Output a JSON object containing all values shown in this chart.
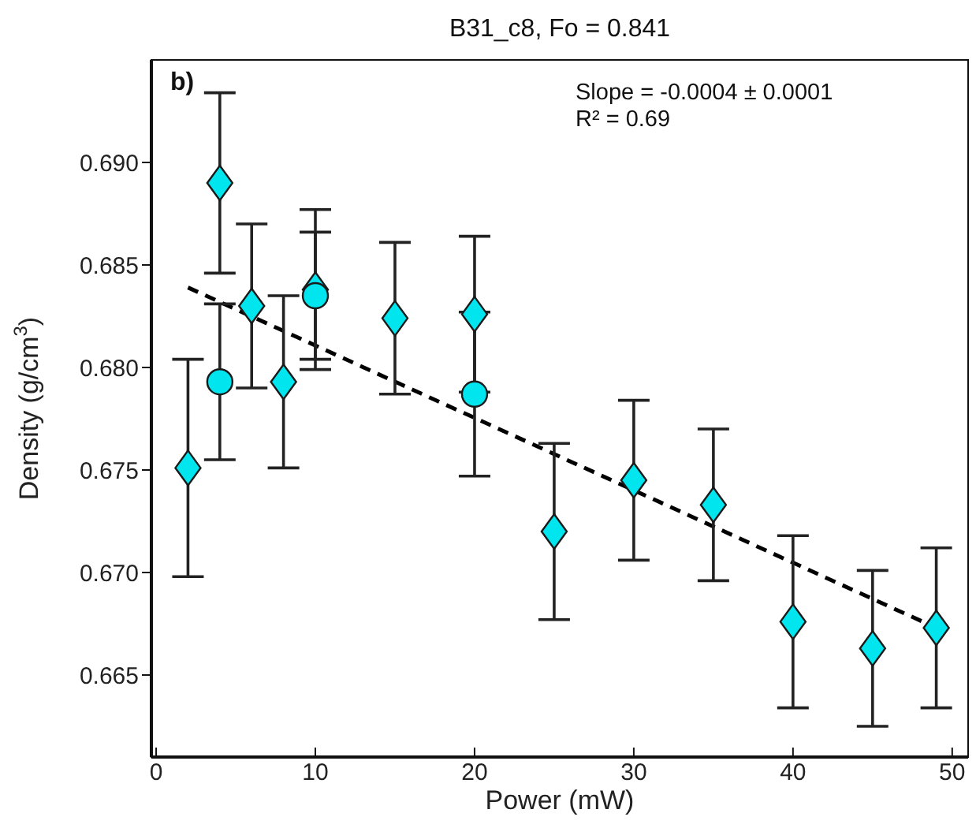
{
  "chart_data": {
    "type": "scatter",
    "title": "B31_c8, Fo = 0.841",
    "xlabel": "Power (mW)",
    "ylabel": "Density (g/cm$^{3}$)",
    "annotations": [
      "b)",
      "Slope = -0.0004 ± 0.0001",
      "R² = 0.69"
    ],
    "xlim": [
      -0.3,
      51
    ],
    "xticks": [
      0,
      10,
      20,
      30,
      40,
      50
    ],
    "ylim": [
      0.661,
      0.695
    ],
    "yticks": [
      0.665,
      {
        "value": 0.67,
        "label": "0.670"
      },
      0.675,
      {
        "value": 0.68,
        "label": "0.680"
      },
      0.685,
      {
        "value": 0.69,
        "label": "0.690"
      }
    ],
    "series": [
      {
        "type": "line",
        "color": "#000000",
        "line_style": "dashed",
        "marker": "none",
        "x": [
          2,
          49
        ],
        "values": [
          0.6839,
          0.6673
        ]
      },
      {
        "marker": "diamond",
        "color": "#00e5ee",
        "x": [
          2,
          4,
          6,
          8,
          10,
          15,
          20,
          25,
          30,
          35,
          40,
          45,
          49
        ],
        "values": [
          0.6751,
          0.689,
          0.683,
          0.6793,
          0.6838,
          0.6824,
          0.6826,
          0.672,
          0.6745,
          0.6733,
          0.6676,
          0.6663,
          0.6673
        ],
        "errors": [
          0.0053,
          0.0044,
          0.004,
          0.0042,
          0.0039,
          0.0037,
          0.0038,
          0.0043,
          0.0039,
          0.0037,
          0.0042,
          0.0038,
          0.0039
        ]
      },
      {
        "marker": "circle",
        "color": "#00e5ee",
        "x": [
          4,
          10,
          20
        ],
        "values": [
          0.6793,
          0.6835,
          0.6787
        ],
        "errors": [
          0.0038,
          0.0031,
          0.004
        ]
      }
    ]
  }
}
